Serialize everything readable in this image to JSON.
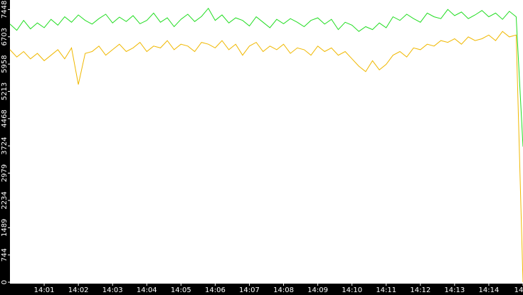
{
  "chart_data": {
    "type": "line",
    "x": [
      0,
      0.2,
      0.4,
      0.6,
      0.8,
      1,
      1.2,
      1.4,
      1.6,
      1.8,
      2,
      2.2,
      2.4,
      2.6,
      2.8,
      3,
      3.2,
      3.4,
      3.6,
      3.8,
      4,
      4.2,
      4.4,
      4.6,
      4.8,
      5,
      5.2,
      5.4,
      5.6,
      5.8,
      6,
      6.2,
      6.4,
      6.6,
      6.8,
      7,
      7.2,
      7.4,
      7.6,
      7.8,
      8,
      8.2,
      8.4,
      8.6,
      8.8,
      9,
      9.2,
      9.4,
      9.6,
      9.8,
      10,
      10.2,
      10.4,
      10.6,
      10.8,
      11,
      11.2,
      11.4,
      11.6,
      11.8,
      12,
      12.2,
      12.4,
      12.6,
      12.8,
      13,
      13.2,
      13.4,
      13.6,
      13.8,
      14,
      14.2,
      14.4,
      14.6,
      14.8,
      15
    ],
    "series": [
      {
        "color": "#22dd22",
        "values": [
          7050,
          6880,
          7150,
          6920,
          7080,
          6950,
          7180,
          7020,
          7250,
          7100,
          7300,
          7150,
          7050,
          7200,
          7320,
          7080,
          7240,
          7120,
          7280,
          7060,
          7150,
          7350,
          7100,
          7220,
          6980,
          7180,
          7320,
          7120,
          7260,
          7480,
          7150,
          7300,
          7080,
          7220,
          7150,
          7000,
          7250,
          7100,
          6950,
          7180,
          7060,
          7200,
          7100,
          6980,
          7150,
          7220,
          7050,
          7180,
          6900,
          7100,
          7020,
          6850,
          6980,
          6900,
          7080,
          6950,
          7250,
          7150,
          7320,
          7200,
          7100,
          7350,
          7250,
          7200,
          7450,
          7280,
          7380,
          7200,
          7300,
          7420,
          7250,
          7350,
          7180,
          7400,
          7250,
          3700
        ]
      },
      {
        "color": "#f0b800",
        "values": [
          6350,
          6150,
          6300,
          6100,
          6250,
          6050,
          6200,
          6350,
          6100,
          6400,
          5400,
          6250,
          6300,
          6450,
          6200,
          6350,
          6500,
          6300,
          6400,
          6550,
          6300,
          6450,
          6400,
          6600,
          6350,
          6500,
          6450,
          6300,
          6550,
          6500,
          6400,
          6600,
          6350,
          6500,
          6200,
          6450,
          6550,
          6300,
          6450,
          6350,
          6500,
          6250,
          6400,
          6350,
          6200,
          6450,
          6300,
          6400,
          6200,
          6300,
          6100,
          5900,
          5750,
          6050,
          5800,
          5950,
          6200,
          6300,
          6150,
          6400,
          6350,
          6500,
          6450,
          6600,
          6550,
          6650,
          6500,
          6700,
          6600,
          6650,
          6750,
          6600,
          6850,
          6700,
          6750,
          0
        ]
      }
    ],
    "xlim": [
      0,
      15
    ],
    "xticks": [
      {
        "value": 1,
        "label": "14:01"
      },
      {
        "value": 2,
        "label": "14:02"
      },
      {
        "value": 3,
        "label": "14:03"
      },
      {
        "value": 4,
        "label": "14:04"
      },
      {
        "value": 5,
        "label": "14:05"
      },
      {
        "value": 6,
        "label": "14:06"
      },
      {
        "value": 7,
        "label": "14:07"
      },
      {
        "value": 8,
        "label": "14:08"
      },
      {
        "value": 9,
        "label": "14:09"
      },
      {
        "value": 10,
        "label": "14:10"
      },
      {
        "value": 11,
        "label": "14:11"
      },
      {
        "value": 12,
        "label": "14:12"
      },
      {
        "value": 13,
        "label": "14:13"
      },
      {
        "value": 14,
        "label": "14:14"
      },
      {
        "value": 15,
        "label": "14"
      }
    ],
    "ylim": [
      0,
      7708
    ],
    "yticks": [
      0,
      744,
      1489,
      2234,
      2979,
      3724,
      4468,
      5213,
      5958,
      6703,
      7448
    ]
  }
}
